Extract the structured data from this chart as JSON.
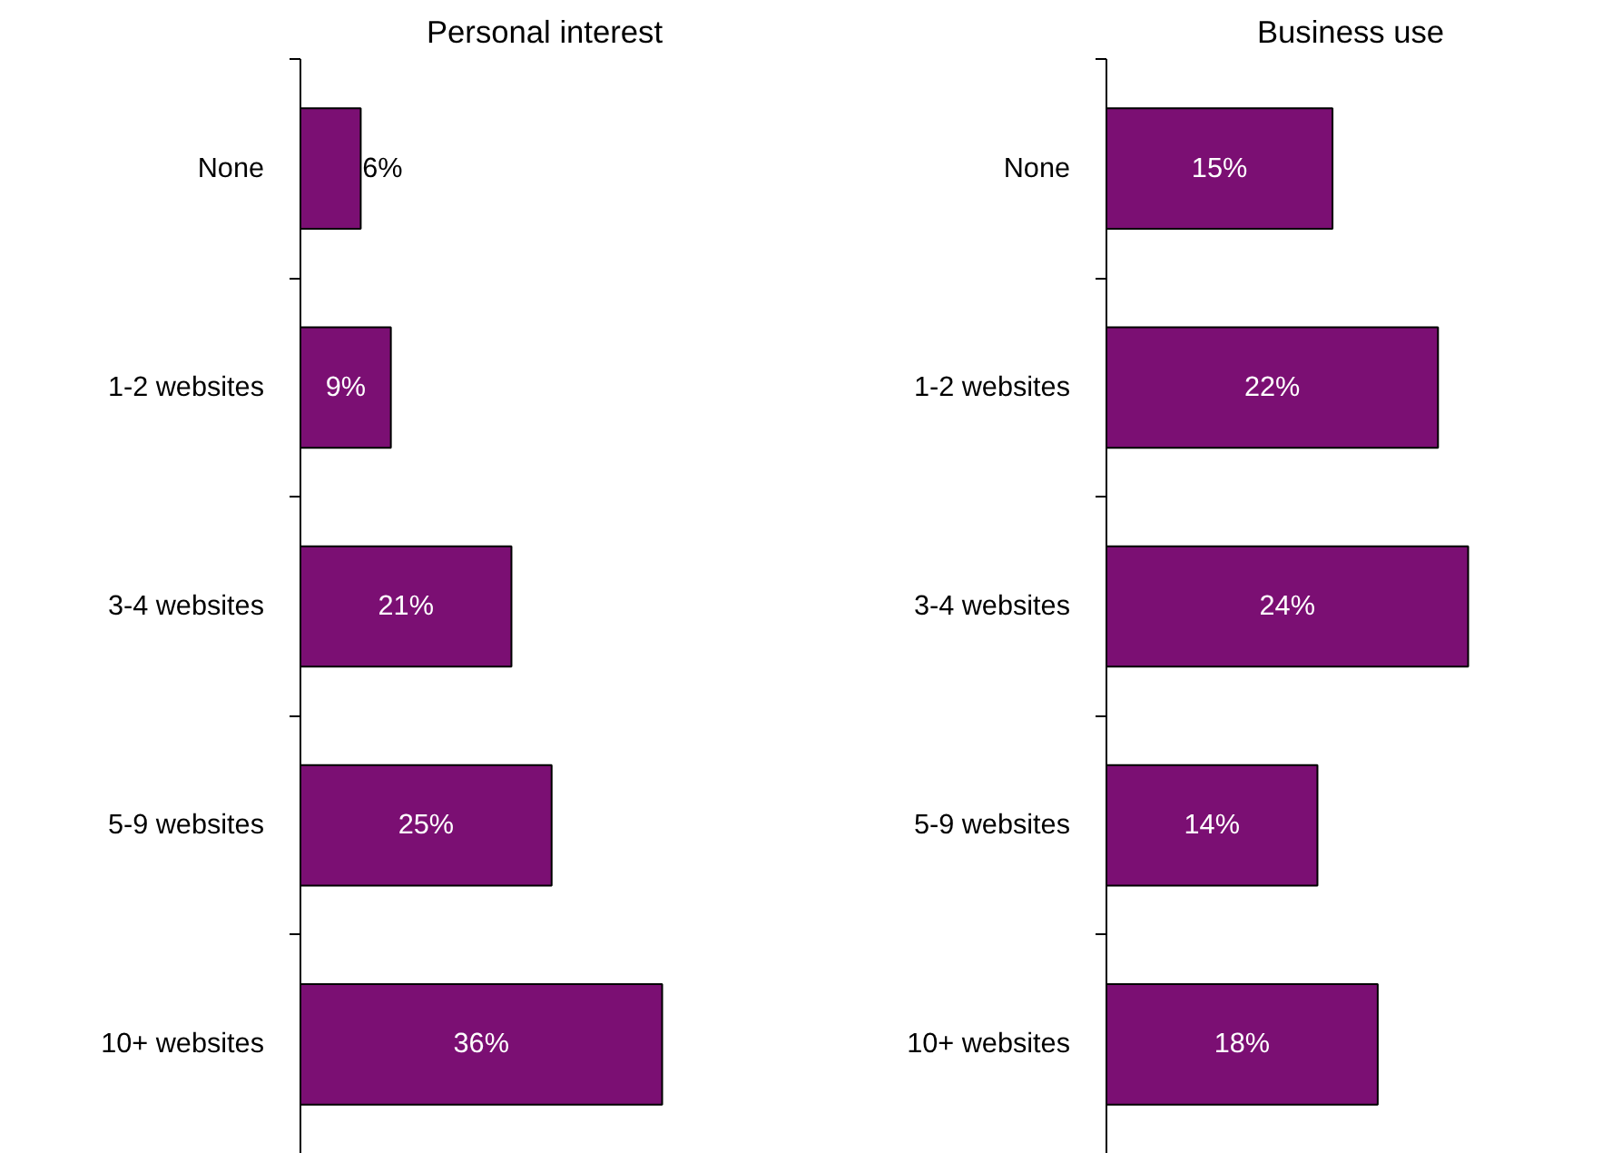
{
  "chart_data": [
    {
      "type": "bar",
      "orientation": "horizontal",
      "title": "Personal interest",
      "categories": [
        "None",
        "1-2 websites",
        "3-4 websites",
        "5-9 websites",
        "10+ websites"
      ],
      "values": [
        6,
        9,
        21,
        25,
        36
      ],
      "color": "#7b0f73",
      "data_labels": true,
      "value_labels": [
        "6%",
        "9%",
        "21%",
        "25%",
        "36%"
      ],
      "grid": false,
      "tick_labels": "y"
    },
    {
      "type": "bar",
      "orientation": "horizontal",
      "title": "Business use",
      "categories": [
        "None",
        "1-2 websites",
        "3-4 websites",
        "5-9 websites",
        "10+ websites"
      ],
      "values": [
        15,
        22,
        24,
        14,
        18
      ],
      "color": "#7b0f73",
      "data_labels": true,
      "value_labels": [
        "15%",
        "22%",
        "24%",
        "14%",
        "18%"
      ],
      "grid": false,
      "tick_labels": "y"
    }
  ]
}
